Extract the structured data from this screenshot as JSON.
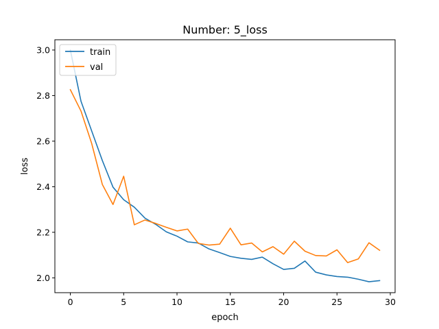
{
  "chart_data": {
    "type": "line",
    "title": "Number: 5_loss",
    "xlabel": "epoch",
    "ylabel": "loss",
    "xlim": [
      -1.45,
      30.45
    ],
    "ylim": [
      1.935,
      3.045
    ],
    "xticks": [
      0,
      5,
      10,
      15,
      20,
      25,
      30
    ],
    "yticks": [
      2.0,
      2.2,
      2.4,
      2.6,
      2.8,
      3.0
    ],
    "grid": false,
    "legend_position": "top-left",
    "x": [
      0,
      1,
      2,
      3,
      4,
      5,
      6,
      7,
      8,
      9,
      10,
      11,
      12,
      13,
      14,
      15,
      16,
      17,
      18,
      19,
      20,
      21,
      22,
      23,
      24,
      25,
      26,
      27,
      28,
      29
    ],
    "series": [
      {
        "name": "train",
        "color": "#1f77b4",
        "values": [
          3.0,
          2.775,
          2.645,
          2.515,
          2.398,
          2.343,
          2.31,
          2.262,
          2.235,
          2.202,
          2.183,
          2.158,
          2.153,
          2.127,
          2.111,
          2.094,
          2.086,
          2.081,
          2.091,
          2.062,
          2.037,
          2.042,
          2.074,
          2.025,
          2.013,
          2.006,
          2.003,
          1.994,
          1.983,
          1.988
        ]
      },
      {
        "name": "val",
        "color": "#ff7f0e",
        "values": [
          2.826,
          2.732,
          2.59,
          2.41,
          2.322,
          2.446,
          2.233,
          2.254,
          2.239,
          2.222,
          2.206,
          2.214,
          2.151,
          2.144,
          2.148,
          2.218,
          2.145,
          2.153,
          2.114,
          2.137,
          2.104,
          2.161,
          2.117,
          2.098,
          2.096,
          2.123,
          2.067,
          2.083,
          2.154,
          2.121
        ]
      }
    ]
  }
}
